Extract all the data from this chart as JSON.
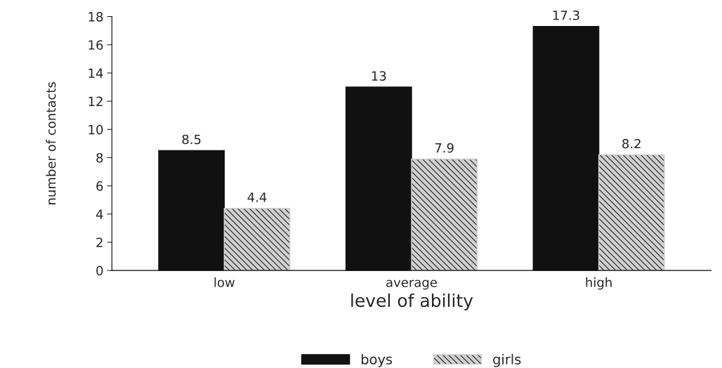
{
  "chart_data": {
    "type": "bar",
    "xlabel": "level of ability",
    "ylabel": "number of contacts",
    "categories": [
      "low",
      "average",
      "high"
    ],
    "series": [
      {
        "name": "boys",
        "color": "#111111",
        "values": [
          8.5,
          13,
          17.3
        ]
      },
      {
        "name": "girls",
        "color": "#d0d0d0",
        "values": [
          4.4,
          7.9,
          8.2
        ]
      }
    ],
    "ylim": [
      0,
      18
    ],
    "yticks": [
      0,
      2,
      4,
      6,
      8,
      10,
      12,
      14,
      16,
      18
    ],
    "data_labels": true,
    "grid": false,
    "legend": "bottom"
  }
}
